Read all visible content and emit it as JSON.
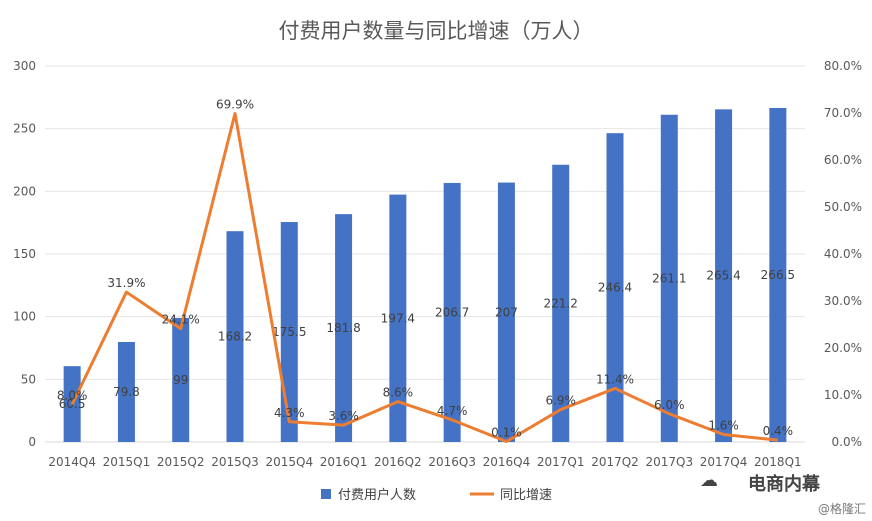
{
  "chart_data": {
    "type": "bar+line",
    "title": "付费用户数量与同比增速（万人）",
    "categories": [
      "2014Q4",
      "2015Q1",
      "2015Q2",
      "2015Q3",
      "2015Q4",
      "2016Q1",
      "2016Q2",
      "2016Q3",
      "2016Q4",
      "2017Q1",
      "2017Q2",
      "2017Q3",
      "2017Q4",
      "2018Q1"
    ],
    "series": [
      {
        "name": "付费用户人数",
        "type": "bar",
        "axis": "left",
        "color": "#4472C4",
        "values": [
          60.5,
          79.8,
          99,
          168.2,
          175.5,
          181.8,
          197.4,
          206.7,
          207,
          221.2,
          246.4,
          261.1,
          265.4,
          266.5
        ],
        "labels": [
          "60.5",
          "79.8",
          "99",
          "168.2",
          "175.5",
          "181.8",
          "197.4",
          "206.7",
          "207",
          "221.2",
          "246.4",
          "261.1",
          "265.4",
          "266.5"
        ]
      },
      {
        "name": "同比增速",
        "type": "line",
        "axis": "right",
        "color": "#ED7D31",
        "values": [
          8.0,
          31.9,
          24.1,
          69.9,
          4.3,
          3.6,
          8.6,
          4.7,
          0.1,
          6.9,
          11.4,
          6.0,
          1.6,
          0.4
        ],
        "labels": [
          "8.0%",
          "31.9%",
          "24.1%",
          "69.9%",
          "4.3%",
          "3.6%",
          "8.6%",
          "4.7%",
          "0.1%",
          "6.9%",
          "11.4%",
          "6.0%",
          "1.6%",
          "0.4%"
        ]
      }
    ],
    "y_left": {
      "min": 0,
      "max": 300,
      "ticks": [
        "0",
        "50",
        "100",
        "150",
        "200",
        "250",
        "300"
      ]
    },
    "y_right": {
      "min": 0,
      "max": 80,
      "ticks": [
        "0.0%",
        "10.0%",
        "20.0%",
        "30.0%",
        "40.0%",
        "50.0%",
        "60.0%",
        "70.0%",
        "80.0%"
      ]
    },
    "grid": true,
    "legend_position": "bottom"
  },
  "watermark": {
    "main": "电商内幕",
    "sub": "@格隆汇",
    "icon": "wechat-icon"
  }
}
